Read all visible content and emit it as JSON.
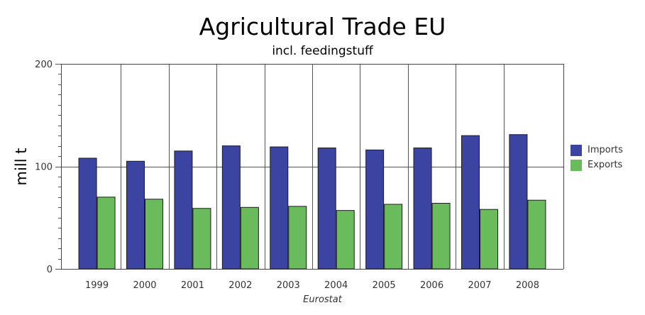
{
  "chart_data": {
    "type": "bar",
    "title": "Agricultural Trade EU",
    "subtitle": "incl. feedingstuff",
    "xlabel": "",
    "ylabel": "mill t",
    "ylim": [
      0,
      200
    ],
    "yticks": [
      "0",
      "100",
      "200"
    ],
    "categories": [
      "1999",
      "2000",
      "2001",
      "2002",
      "2003",
      "2004",
      "2005",
      "2006",
      "2007",
      "2008"
    ],
    "series": [
      {
        "name": "Imports",
        "color": "#3b44a0",
        "values": [
          108,
          105,
          115,
          120,
          119,
          118,
          116,
          118,
          130,
          131
        ]
      },
      {
        "name": "Exports",
        "color": "#6abb5c",
        "values": [
          70,
          68,
          59,
          60,
          61,
          57,
          63,
          64,
          58,
          67
        ]
      }
    ],
    "grid": true,
    "legend_position": "right",
    "source": "Eurostat"
  }
}
